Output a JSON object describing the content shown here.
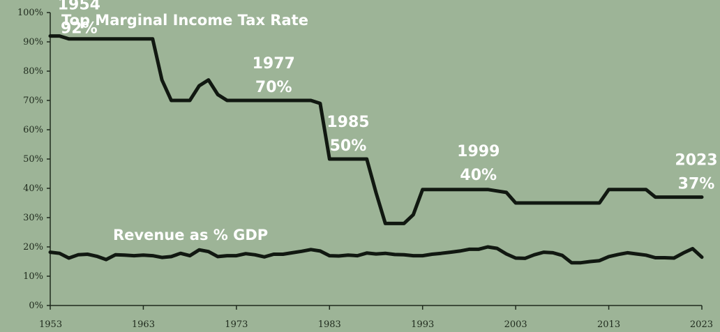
{
  "chart_data": {
    "type": "line",
    "xlim": [
      1953,
      2023
    ],
    "ylim": [
      0,
      100
    ],
    "y_tick_labels": [
      "0%",
      "10%",
      "20%",
      "30%",
      "40%",
      "50%",
      "60%",
      "70%",
      "80%",
      "90%",
      "100%"
    ],
    "x_ticks": [
      1953,
      1963,
      1973,
      1983,
      1993,
      2003,
      2013,
      2023
    ],
    "x_tick_labels": [
      "1953",
      "1963",
      "1973",
      "1983",
      "1993",
      "2003",
      "2013",
      "2023"
    ],
    "grid": false,
    "line_color": "#111811",
    "background_color": "#9db497",
    "series": [
      {
        "name": "Top Marginal Income Tax Rate",
        "x": [
          1953,
          1954,
          1955,
          1964,
          1965,
          1966,
          1968,
          1969,
          1970,
          1971,
          1972,
          1981,
          1982,
          1983,
          1987,
          1988,
          1989,
          1990,
          1991,
          1992,
          1993,
          2000,
          2001,
          2002,
          2003,
          2012,
          2013,
          2017,
          2018,
          2023
        ],
        "y": [
          92,
          92,
          91,
          91,
          77,
          70,
          70,
          75,
          77,
          72,
          70,
          70,
          69,
          50,
          50,
          38.5,
          28,
          28,
          28,
          31,
          39.6,
          39.6,
          39.1,
          38.6,
          35,
          35,
          39.6,
          39.6,
          37,
          37
        ]
      },
      {
        "name": "Revenue as % GDP",
        "x": [
          1953,
          1954,
          1955,
          1956,
          1957,
          1958,
          1959,
          1960,
          1961,
          1962,
          1963,
          1964,
          1965,
          1966,
          1967,
          1968,
          1969,
          1970,
          1971,
          1972,
          1973,
          1974,
          1975,
          1976,
          1977,
          1978,
          1979,
          1980,
          1981,
          1982,
          1983,
          1984,
          1985,
          1986,
          1987,
          1988,
          1989,
          1990,
          1991,
          1992,
          1993,
          1994,
          1995,
          1996,
          1997,
          1998,
          1999,
          2000,
          2001,
          2002,
          2003,
          2004,
          2005,
          2006,
          2007,
          2008,
          2009,
          2010,
          2011,
          2012,
          2013,
          2014,
          2015,
          2016,
          2017,
          2018,
          2019,
          2020,
          2021,
          2022,
          2023
        ],
        "y": [
          18.2,
          17.8,
          16.2,
          17.3,
          17.5,
          16.8,
          15.7,
          17.3,
          17.2,
          17.0,
          17.2,
          17.0,
          16.4,
          16.7,
          17.8,
          17.0,
          19.0,
          18.4,
          16.7,
          17.0,
          17.0,
          17.7,
          17.3,
          16.6,
          17.5,
          17.5,
          18.0,
          18.5,
          19.1,
          18.6,
          17.0,
          16.9,
          17.2,
          17.0,
          17.9,
          17.6,
          17.8,
          17.4,
          17.3,
          17.0,
          17.0,
          17.5,
          17.8,
          18.2,
          18.6,
          19.2,
          19.2,
          20.0,
          19.5,
          17.6,
          16.2,
          16.1,
          17.3,
          18.2,
          18.0,
          17.1,
          14.6,
          14.6,
          15.0,
          15.3,
          16.7,
          17.4,
          18.0,
          17.6,
          17.2,
          16.3,
          16.3,
          16.2,
          17.9,
          19.4,
          16.5
        ]
      }
    ],
    "series_labels": [
      "Top Marginal Income Tax Rate",
      "Revenue as % GDP"
    ],
    "annotations": [
      {
        "year_label": "1954",
        "value_label": "92%",
        "x": 1954,
        "y": 92
      },
      {
        "year_label": "1977",
        "value_label": "70%",
        "x": 1977,
        "y": 70
      },
      {
        "year_label": "1985",
        "value_label": "50%",
        "x": 1985,
        "y": 50
      },
      {
        "year_label": "1999",
        "value_label": "40%",
        "x": 1999,
        "y": 40
      },
      {
        "year_label": "2023",
        "value_label": "37%",
        "x": 2023,
        "y": 37
      }
    ]
  }
}
